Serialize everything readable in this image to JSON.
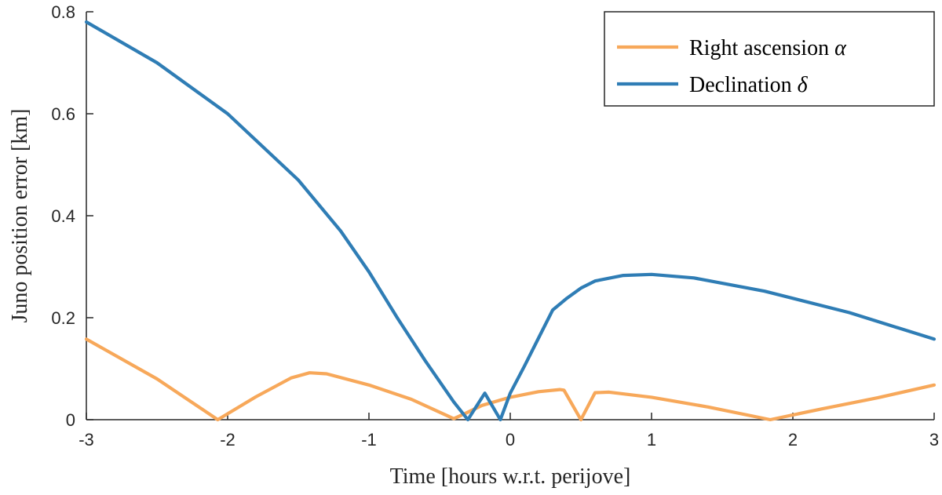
{
  "chart_data": {
    "type": "line",
    "title": "",
    "xlabel": "Time [hours w.r.t. perijove]",
    "ylabel": "Juno position error [km]",
    "xlim": [
      -3,
      3
    ],
    "ylim": [
      0,
      0.8
    ],
    "xticks": [
      -3,
      -2,
      -1,
      0,
      1,
      2,
      3
    ],
    "xtick_labels": [
      "-3",
      "-2",
      "-1",
      "0",
      "1",
      "2",
      "3"
    ],
    "yticks": [
      0,
      0.2,
      0.4,
      0.6,
      0.8
    ],
    "ytick_labels": [
      "0",
      "0.2",
      "0.4",
      "0.6",
      "0.8"
    ],
    "grid": false,
    "legend_position": "top-right",
    "series": [
      {
        "name": "Right ascension",
        "name_symbol": "α",
        "color": "#F7A85A",
        "x": [
          -3,
          -2.5,
          -2.07,
          -1.8,
          -1.55,
          -1.42,
          -1.3,
          -1.0,
          -0.7,
          -0.4,
          -0.32,
          -0.2,
          0,
          0.2,
          0.35,
          0.38,
          0.5,
          0.6,
          0.7,
          1.0,
          1.4,
          1.84,
          2.2,
          2.6,
          3
        ],
        "y": [
          0.158,
          0.08,
          0.0,
          0.045,
          0.082,
          0.092,
          0.09,
          0.068,
          0.04,
          0.002,
          0.012,
          0.028,
          0.044,
          0.055,
          0.059,
          0.058,
          0.0,
          0.053,
          0.054,
          0.044,
          0.025,
          0.0,
          0.021,
          0.043,
          0.068
        ]
      },
      {
        "name": "Declination",
        "name_symbol": "δ",
        "color": "#2F7DB5",
        "x": [
          -3,
          -2.5,
          -2.0,
          -1.5,
          -1.2,
          -1.0,
          -0.8,
          -0.6,
          -0.4,
          -0.3,
          -0.18,
          -0.07,
          0,
          0.1,
          0.2,
          0.3,
          0.4,
          0.5,
          0.6,
          0.8,
          1.0,
          1.3,
          1.8,
          2.4,
          3
        ],
        "y": [
          0.78,
          0.7,
          0.6,
          0.47,
          0.37,
          0.29,
          0.2,
          0.115,
          0.035,
          0.0,
          0.052,
          0.0,
          0.052,
          0.105,
          0.16,
          0.215,
          0.238,
          0.258,
          0.272,
          0.283,
          0.285,
          0.278,
          0.252,
          0.21,
          0.158
        ]
      }
    ]
  }
}
